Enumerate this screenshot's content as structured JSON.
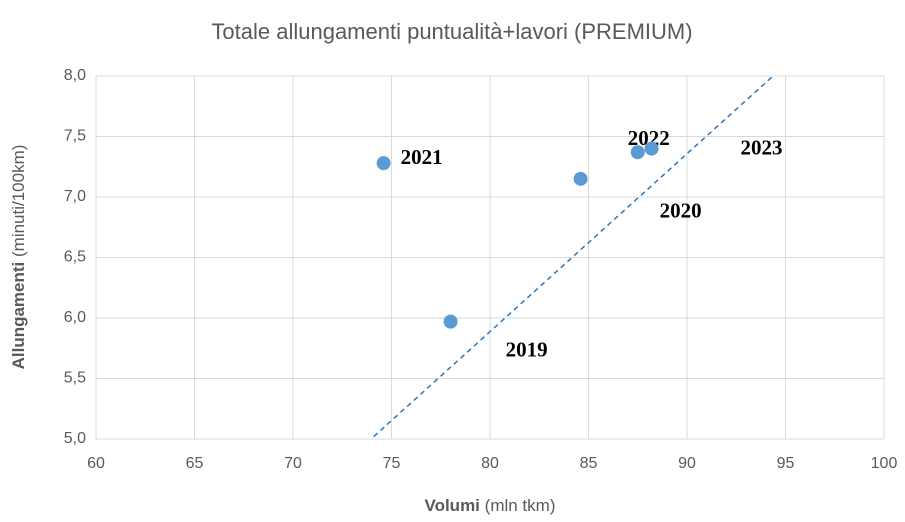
{
  "chart_data": {
    "type": "scatter",
    "title": "Totale allungamenti puntualità+lavori (PREMIUM)",
    "xlabel": [
      "Volumi",
      "(mln tkm)"
    ],
    "ylabel": [
      "Allungamenti",
      "(minuti/100km)"
    ],
    "series": [
      {
        "color": "#5b9bd5",
        "labels": [
          "2019",
          "2020",
          "2021",
          "2022",
          "2023"
        ],
        "x": [
          78.0,
          84.6,
          74.6,
          87.5,
          88.2
        ],
        "values": [
          5.97,
          7.15,
          7.28,
          7.37,
          7.4
        ]
      }
    ],
    "trendline": {
      "color": "#2e75b6",
      "x": [
        74.1,
        94.3
      ],
      "values": [
        5.02,
        7.99
      ]
    },
    "xlim": [
      60,
      100
    ],
    "xticks": [
      60,
      65,
      70,
      75,
      80,
      85,
      90,
      95,
      100
    ],
    "ylim": [
      5,
      8
    ],
    "yticks": [
      {
        "value": 5,
        "label": "5,0"
      },
      {
        "value": 5.5,
        "label": "5,5"
      },
      {
        "value": 6,
        "label": "6,0"
      },
      {
        "value": 6.5,
        "label": "6,5"
      },
      {
        "value": 7,
        "label": "7,0"
      },
      {
        "value": 7.5,
        "label": "7,5"
      },
      {
        "value": 8,
        "label": "8,0"
      }
    ],
    "grid": true
  }
}
